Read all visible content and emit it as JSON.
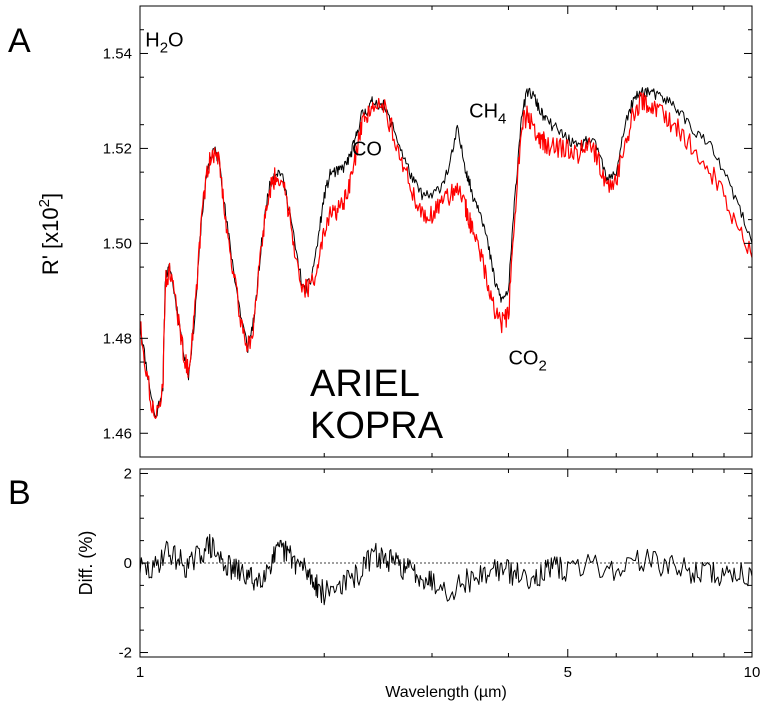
{
  "colors": {
    "ariel": "#000000",
    "kopra": "#ff0000",
    "axis": "#000000"
  },
  "chart_data": [
    {
      "panel_label": "A",
      "type": "line",
      "xscale": "log",
      "xlim": [
        1,
        10
      ],
      "ylim": [
        1.455,
        1.55
      ],
      "ylabel_main": "R' [x10",
      "ylabel_exp": "2",
      "ylabel_close": "]",
      "yticks": [
        {
          "value": 1.46,
          "label": "1.46"
        },
        {
          "value": 1.48,
          "label": "1.48"
        },
        {
          "value": 1.5,
          "label": "1.50"
        },
        {
          "value": 1.52,
          "label": "1.52"
        },
        {
          "value": 1.54,
          "label": "1.54"
        }
      ],
      "annotations": [
        {
          "id": "h2o",
          "main": "H",
          "sub": "2",
          "tail": "O",
          "x": 1.02,
          "y": 1.5415
        },
        {
          "id": "co",
          "main": "CO",
          "sub": "",
          "tail": "",
          "x": 2.22,
          "y": 1.5185
        },
        {
          "id": "ch4",
          "main": "CH",
          "sub": "4",
          "tail": "",
          "x": 3.45,
          "y": 1.5265
        },
        {
          "id": "co2",
          "main": "CO",
          "sub": "2",
          "tail": "",
          "x": 4.0,
          "y": 1.4745
        }
      ],
      "legend": [
        {
          "name": "ARIEL",
          "color": "#000000"
        },
        {
          "name": "KOPRA",
          "color": "#ff0000"
        }
      ],
      "series": [
        {
          "name": "ARIEL",
          "color": "#000000",
          "x": [
            1.0,
            1.03,
            1.06,
            1.09,
            1.1,
            1.12,
            1.15,
            1.18,
            1.2,
            1.23,
            1.26,
            1.29,
            1.32,
            1.35,
            1.38,
            1.42,
            1.46,
            1.5,
            1.54,
            1.58,
            1.62,
            1.66,
            1.7,
            1.75,
            1.8,
            1.85,
            1.9,
            1.95,
            2.0,
            2.05,
            2.1,
            2.15,
            2.2,
            2.25,
            2.3,
            2.35,
            2.4,
            2.5,
            2.6,
            2.7,
            2.8,
            2.9,
            3.0,
            3.1,
            3.2,
            3.3,
            3.4,
            3.45,
            3.5,
            3.6,
            3.7,
            3.8,
            3.9,
            4.0,
            4.1,
            4.2,
            4.3,
            4.4,
            4.5,
            4.6,
            4.8,
            5.0,
            5.2,
            5.4,
            5.6,
            5.8,
            6.0,
            6.2,
            6.4,
            6.6,
            6.8,
            7.0,
            7.3,
            7.6,
            8.0,
            8.5,
            9.0,
            9.5,
            10.0
          ],
          "y": [
            1.483,
            1.472,
            1.463,
            1.47,
            1.493,
            1.495,
            1.486,
            1.477,
            1.472,
            1.485,
            1.505,
            1.516,
            1.52,
            1.517,
            1.506,
            1.495,
            1.485,
            1.478,
            1.485,
            1.5,
            1.511,
            1.515,
            1.515,
            1.508,
            1.498,
            1.49,
            1.492,
            1.5,
            1.51,
            1.515,
            1.515,
            1.516,
            1.518,
            1.522,
            1.527,
            1.528,
            1.53,
            1.529,
            1.524,
            1.518,
            1.513,
            1.51,
            1.51,
            1.512,
            1.516,
            1.524,
            1.516,
            1.513,
            1.51,
            1.507,
            1.5,
            1.492,
            1.488,
            1.49,
            1.51,
            1.527,
            1.532,
            1.531,
            1.528,
            1.526,
            1.524,
            1.522,
            1.52,
            1.522,
            1.52,
            1.513,
            1.515,
            1.525,
            1.53,
            1.532,
            1.532,
            1.531,
            1.53,
            1.528,
            1.524,
            1.521,
            1.515,
            1.508,
            1.5
          ]
        },
        {
          "name": "KOPRA",
          "color": "#ff0000",
          "x": [
            1.0,
            1.03,
            1.06,
            1.09,
            1.1,
            1.12,
            1.15,
            1.18,
            1.2,
            1.23,
            1.26,
            1.29,
            1.32,
            1.35,
            1.38,
            1.42,
            1.46,
            1.5,
            1.54,
            1.58,
            1.62,
            1.66,
            1.7,
            1.75,
            1.8,
            1.85,
            1.9,
            1.95,
            2.0,
            2.05,
            2.1,
            2.15,
            2.2,
            2.25,
            2.3,
            2.35,
            2.4,
            2.5,
            2.6,
            2.7,
            2.8,
            2.9,
            3.0,
            3.1,
            3.2,
            3.3,
            3.4,
            3.45,
            3.5,
            3.6,
            3.7,
            3.8,
            3.9,
            4.0,
            4.1,
            4.2,
            4.3,
            4.4,
            4.5,
            4.6,
            4.8,
            5.0,
            5.2,
            5.4,
            5.6,
            5.8,
            6.0,
            6.2,
            6.4,
            6.6,
            6.8,
            7.0,
            7.3,
            7.6,
            8.0,
            8.5,
            9.0,
            9.5,
            10.0
          ],
          "y": [
            1.483,
            1.471,
            1.462,
            1.47,
            1.492,
            1.494,
            1.486,
            1.476,
            1.473,
            1.486,
            1.505,
            1.516,
            1.519,
            1.517,
            1.505,
            1.494,
            1.484,
            1.478,
            1.484,
            1.5,
            1.51,
            1.514,
            1.514,
            1.507,
            1.497,
            1.49,
            1.491,
            1.495,
            1.502,
            1.506,
            1.507,
            1.508,
            1.512,
            1.518,
            1.524,
            1.527,
            1.53,
            1.529,
            1.523,
            1.516,
            1.51,
            1.506,
            1.506,
            1.508,
            1.51,
            1.512,
            1.508,
            1.505,
            1.502,
            1.498,
            1.492,
            1.486,
            1.483,
            1.485,
            1.505,
            1.525,
            1.527,
            1.524,
            1.522,
            1.521,
            1.52,
            1.52,
            1.519,
            1.521,
            1.518,
            1.512,
            1.513,
            1.521,
            1.527,
            1.53,
            1.529,
            1.528,
            1.526,
            1.524,
            1.52,
            1.516,
            1.51,
            1.503,
            1.497
          ]
        }
      ]
    },
    {
      "panel_label": "B",
      "type": "line",
      "xscale": "log",
      "xlim": [
        1,
        10
      ],
      "ylim": [
        -2.1,
        2.1
      ],
      "ylabel": "Diff. (%)",
      "xlabel": "Wavelength (µm)",
      "yticks": [
        {
          "value": -2,
          "label": "-2"
        },
        {
          "value": 0,
          "label": "0"
        },
        {
          "value": 2,
          "label": "2"
        }
      ],
      "xticks": [
        {
          "value": 1,
          "label": "1"
        },
        {
          "value": 5,
          "label": "5"
        },
        {
          "value": 10,
          "label": "10"
        }
      ],
      "zero_line": true,
      "series": [
        {
          "name": "Diff.",
          "color": "#000000",
          "x": [
            1.0,
            1.05,
            1.1,
            1.15,
            1.2,
            1.25,
            1.3,
            1.35,
            1.4,
            1.45,
            1.5,
            1.55,
            1.6,
            1.65,
            1.7,
            1.75,
            1.8,
            1.85,
            1.9,
            1.95,
            2.0,
            2.1,
            2.2,
            2.3,
            2.4,
            2.5,
            2.6,
            2.7,
            2.8,
            2.9,
            3.0,
            3.2,
            3.4,
            3.6,
            3.8,
            4.0,
            4.2,
            4.4,
            4.6,
            4.8,
            5.0,
            5.5,
            6.0,
            6.5,
            7.0,
            7.5,
            8.0,
            8.5,
            9.0,
            9.5,
            10.0
          ],
          "y": [
            -0.1,
            -0.2,
            0.3,
            0.1,
            -0.1,
            0.2,
            0.4,
            0.1,
            -0.1,
            -0.2,
            -0.3,
            -0.4,
            -0.2,
            0.1,
            0.3,
            0.2,
            0.0,
            -0.1,
            -0.3,
            -0.5,
            -0.7,
            -0.5,
            -0.4,
            -0.2,
            0.2,
            0.1,
            0.0,
            -0.1,
            -0.2,
            -0.3,
            -0.4,
            -0.6,
            -0.4,
            -0.3,
            -0.1,
            -0.2,
            -0.3,
            -0.3,
            -0.2,
            -0.1,
            -0.2,
            0.0,
            -0.2,
            0.1,
            0.0,
            -0.1,
            -0.2,
            -0.2,
            -0.3,
            -0.2,
            -0.3
          ]
        }
      ]
    }
  ]
}
